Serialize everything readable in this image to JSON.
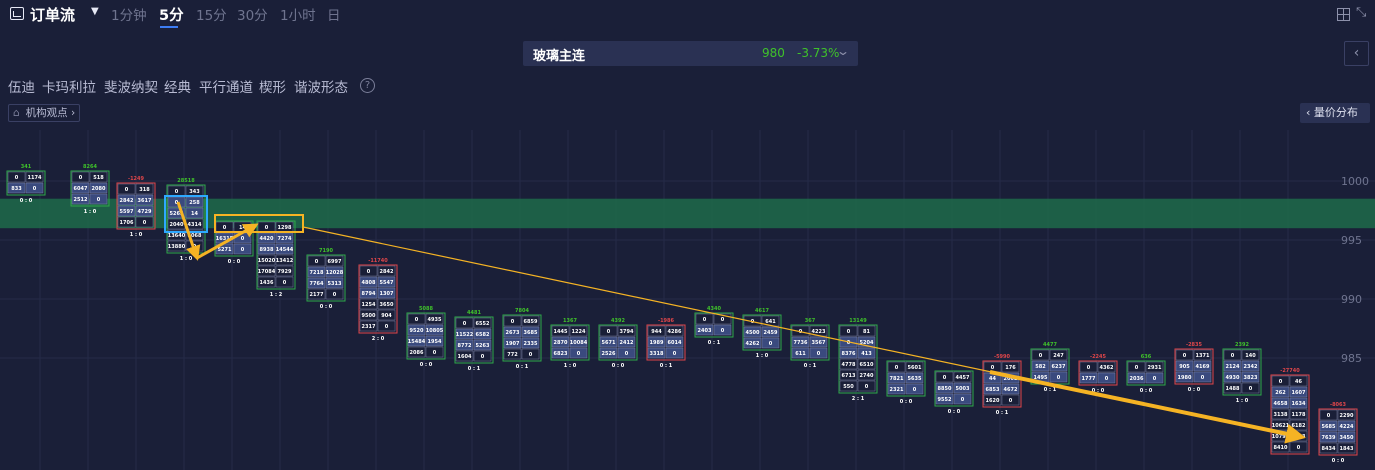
{
  "header": {
    "title": "订单流",
    "timeframes": [
      {
        "label": "1分钟",
        "active": false
      },
      {
        "label": "5分",
        "active": true
      },
      {
        "label": "15分",
        "active": false
      },
      {
        "label": "30分",
        "active": false
      },
      {
        "label": "1小时",
        "active": false
      },
      {
        "label": "日",
        "active": false
      }
    ],
    "grid_icon": "grid-layout-icon",
    "expand_icon": "expand-icon"
  },
  "stock": {
    "name": "玻璃主连",
    "price": "980",
    "change": "-3.73%",
    "color": "#3fc22a"
  },
  "tools": [
    "伍迪",
    "卡玛利拉",
    "斐波纳契",
    "经典",
    "平行通道",
    "楔形",
    "谐波形态"
  ],
  "view_button": "机构观点",
  "volume_profile_button": "量价分布",
  "chart_data": {
    "type": "footprint",
    "y_ticks": [
      "1000",
      "995",
      "990",
      "985"
    ],
    "highlight_zone": {
      "from": 996.0,
      "to": 998.5,
      "color": "#1f6b4a"
    },
    "candles": [
      {
        "top": "341",
        "bid": "0",
        "ask": "1174",
        "rows": [
          [
            "833",
            "0"
          ]
        ],
        "ratio": "0 : 0"
      },
      {
        "top": "8264",
        "bid": "0",
        "ask": "518",
        "rows": [
          [
            "6047",
            "2080"
          ],
          [
            "2512",
            "0"
          ]
        ],
        "ratio": "1 : 0"
      },
      {
        "top": "-1249",
        "bid": "0",
        "ask": "318",
        "rows": [
          [
            "2842",
            "3617"
          ],
          [
            "5597",
            "4729"
          ],
          [
            "1706",
            "0"
          ]
        ],
        "ratio": "1 : 0"
      },
      {
        "top": "28518",
        "bid": "0",
        "ask": "343",
        "rows": [
          [
            "0",
            "258"
          ],
          [
            "5262",
            "14"
          ],
          [
            "2040",
            "4314"
          ],
          [
            "13640",
            "8068"
          ],
          [
            "13880",
            "0"
          ]
        ],
        "ratio": "1 : 0"
      },
      {
        "top": "",
        "bid": "0",
        "ask": "14",
        "rows": [
          [
            "16315",
            "0"
          ],
          [
            "5271",
            "0"
          ]
        ],
        "ratio": "0 : 0"
      },
      {
        "top": "",
        "bid": "0",
        "ask": "1298",
        "rows": [
          [
            "4420",
            "7274"
          ],
          [
            "8938",
            "14544"
          ],
          [
            "15020",
            "13412"
          ],
          [
            "17084",
            "7929"
          ],
          [
            "1436",
            "0"
          ]
        ],
        "ratio": "1 : 2"
      },
      {
        "top": "7190",
        "bid": "0",
        "ask": "6997",
        "rows": [
          [
            "7218",
            "12028"
          ],
          [
            "7764",
            "5313"
          ],
          [
            "2177",
            "0"
          ]
        ],
        "ratio": "0 : 0"
      },
      {
        "top": "-11740",
        "bid": "0",
        "ask": "2842",
        "rows": [
          [
            "4808",
            "5547"
          ],
          [
            "8794",
            "1307"
          ],
          [
            "1254",
            "3650"
          ],
          [
            "9500",
            "904"
          ],
          [
            "2317",
            "0"
          ]
        ],
        "ratio": "2 : 0"
      },
      {
        "top": "5088",
        "bid": "0",
        "ask": "4935",
        "rows": [
          [
            "9520",
            "10805"
          ],
          [
            "15484",
            "1954"
          ],
          [
            "2086",
            "0"
          ]
        ],
        "ratio": "0 : 0"
      },
      {
        "top": "4481",
        "bid": "0",
        "ask": "6552",
        "rows": [
          [
            "11522",
            "6582"
          ],
          [
            "8772",
            "5263"
          ],
          [
            "1604",
            "0"
          ]
        ],
        "ratio": "0 : 1"
      },
      {
        "top": "7804",
        "bid": "0",
        "ask": "6859",
        "rows": [
          [
            "2673",
            "3685"
          ],
          [
            "1907",
            "2335"
          ],
          [
            "772",
            "0"
          ]
        ],
        "ratio": "0 : 1"
      },
      {
        "top": "1367",
        "bid": "1445",
        "ask": "1224",
        "rows": [
          [
            "2870",
            "10084"
          ],
          [
            "6823",
            "0"
          ]
        ],
        "ratio": "1 : 0"
      },
      {
        "top": "4392",
        "bid": "0",
        "ask": "3794",
        "rows": [
          [
            "5671",
            "2412"
          ],
          [
            "2526",
            "0"
          ]
        ],
        "ratio": "0 : 0"
      },
      {
        "top": "-1986",
        "bid": "944",
        "ask": "4286",
        "rows": [
          [
            "1989",
            "6014"
          ],
          [
            "3318",
            "0"
          ]
        ],
        "ratio": "0 : 1"
      },
      {
        "top": "4340",
        "bid": "0",
        "ask": "0",
        "rows": [
          [
            "2403",
            "0"
          ]
        ],
        "ratio": "0 : 1"
      },
      {
        "top": "4617",
        "bid": "0",
        "ask": "641",
        "rows": [
          [
            "4500",
            "2459"
          ],
          [
            "4262",
            "0"
          ]
        ],
        "ratio": "1 : 0"
      },
      {
        "top": "367",
        "bid": "0",
        "ask": "4223",
        "rows": [
          [
            "7736",
            "3567"
          ],
          [
            "611",
            "0"
          ]
        ],
        "ratio": "0 : 1"
      },
      {
        "top": "13149",
        "bid": "0",
        "ask": "81",
        "rows": [
          [
            "0",
            "5204"
          ],
          [
            "8376",
            "413"
          ],
          [
            "4778",
            "6510"
          ],
          [
            "6713",
            "2740"
          ],
          [
            "550",
            "0"
          ]
        ],
        "ratio": "2 : 1"
      },
      {
        "top": "",
        "bid": "0",
        "ask": "5601",
        "rows": [
          [
            "7821",
            "5635"
          ],
          [
            "2321",
            "0"
          ]
        ],
        "ratio": "0 : 0"
      },
      {
        "top": "",
        "bid": "0",
        "ask": "4457",
        "rows": [
          [
            "8850",
            "5003"
          ],
          [
            "9552",
            "0"
          ]
        ],
        "ratio": "0 : 0"
      },
      {
        "top": "-5990",
        "bid": "0",
        "ask": "176",
        "rows": [
          [
            "44",
            "2002"
          ],
          [
            "6853",
            "4672"
          ],
          [
            "1620",
            "0"
          ]
        ],
        "ratio": "0 : 1"
      },
      {
        "top": "4477",
        "bid": "0",
        "ask": "247",
        "rows": [
          [
            "582",
            "6237"
          ],
          [
            "1495",
            "0"
          ]
        ],
        "ratio": "0 : 1"
      },
      {
        "top": "-2245",
        "bid": "0",
        "ask": "4362",
        "rows": [
          [
            "1777",
            "0"
          ]
        ],
        "ratio": "0 : 0"
      },
      {
        "top": "636",
        "bid": "0",
        "ask": "2931",
        "rows": [
          [
            "2036",
            "0"
          ]
        ],
        "ratio": "0 : 0"
      },
      {
        "top": "-2835",
        "bid": "0",
        "ask": "1371",
        "rows": [
          [
            "905",
            "4169"
          ],
          [
            "1980",
            "0"
          ]
        ],
        "ratio": "0 : 0"
      },
      {
        "top": "2392",
        "bid": "0",
        "ask": "140",
        "rows": [
          [
            "2124",
            "2342"
          ],
          [
            "4930",
            "3823"
          ],
          [
            "1488",
            "0"
          ]
        ],
        "ratio": "1 : 0"
      },
      {
        "top": "-27740",
        "bid": "0",
        "ask": "46",
        "rows": [
          [
            "262",
            "1607"
          ],
          [
            "4658",
            "1634"
          ],
          [
            "3138",
            "1178"
          ],
          [
            "10621",
            "6182"
          ],
          [
            "10790",
            "9143"
          ],
          [
            "8410",
            "0"
          ]
        ],
        "ratio": ""
      },
      {
        "top": "-8063",
        "bid": "0",
        "ask": "2290",
        "rows": [
          [
            "5685",
            "4224"
          ],
          [
            "7639",
            "3450"
          ],
          [
            "8434",
            "1843"
          ]
        ],
        "ratio": "0 : 0"
      }
    ]
  }
}
